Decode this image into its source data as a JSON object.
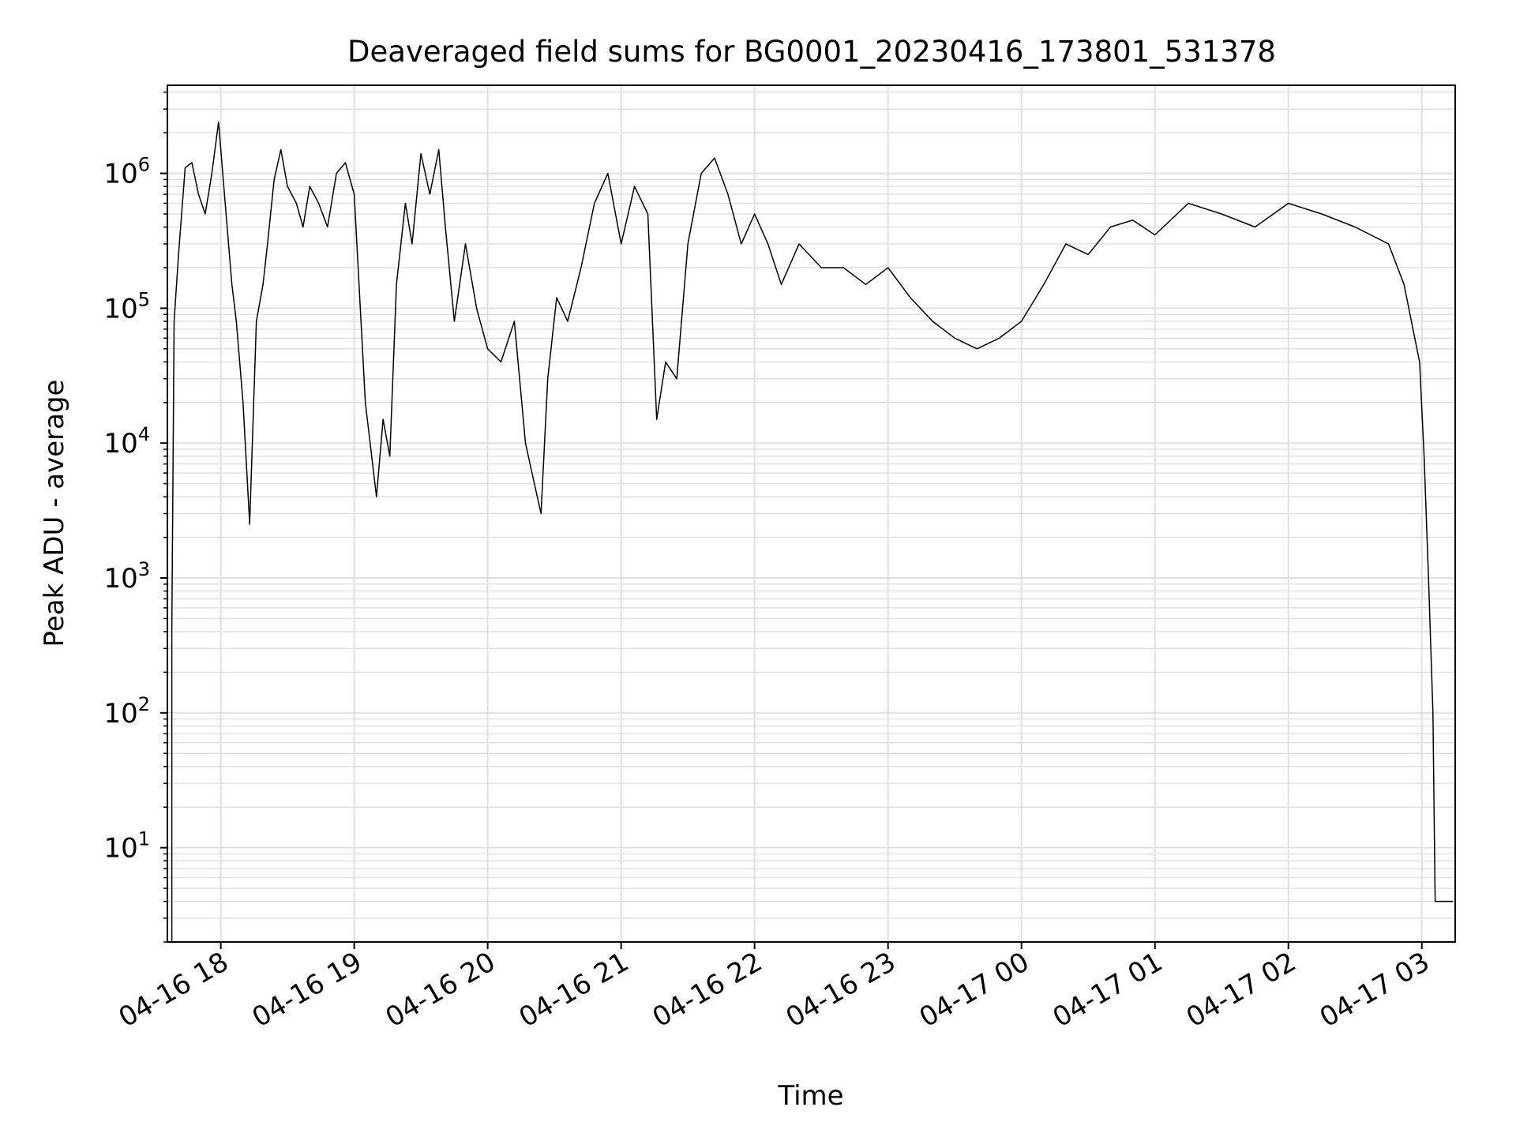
{
  "chart_data": {
    "type": "line",
    "title": "Deaveraged field sums for BG0001_20230416_173801_531378",
    "xlabel": "Time",
    "ylabel": "Peak ADU - average",
    "yscale": "log",
    "ylim": [
      2,
      4500000
    ],
    "xlim": [
      "2023-04-16T17:36",
      "2023-04-17T03:15"
    ],
    "grid": true,
    "line_color": "#000000",
    "grid_color": "#e0e0e0",
    "x_ticks": [
      "2023-04-16T18:00",
      "2023-04-16T19:00",
      "2023-04-16T20:00",
      "2023-04-16T21:00",
      "2023-04-16T22:00",
      "2023-04-16T23:00",
      "2023-04-17T00:00",
      "2023-04-17T01:00",
      "2023-04-17T02:00",
      "2023-04-17T03:00"
    ],
    "x_tick_labels": [
      "04-16 18",
      "04-16 19",
      "04-16 20",
      "04-16 21",
      "04-16 22",
      "04-16 23",
      "04-17 00",
      "04-17 01",
      "04-17 02",
      "04-17 03"
    ],
    "y_ticks": [
      10,
      100,
      1000,
      10000,
      100000,
      1000000
    ],
    "y_tick_exponents": [
      "1",
      "2",
      "3",
      "4",
      "5",
      "6"
    ],
    "y_tick_base": "10",
    "series": [
      {
        "x": [
          "2023-04-16T17:38",
          "2023-04-16T17:38",
          "2023-04-16T17:39",
          "2023-04-16T17:41",
          "2023-04-16T17:44",
          "2023-04-16T17:47",
          "2023-04-16T17:50",
          "2023-04-16T17:53",
          "2023-04-16T17:56",
          "2023-04-16T17:59",
          "2023-04-16T18:02",
          "2023-04-16T18:05",
          "2023-04-16T18:07",
          "2023-04-16T18:10",
          "2023-04-16T18:13",
          "2023-04-16T18:16",
          "2023-04-16T18:19",
          "2023-04-16T18:21",
          "2023-04-16T18:24",
          "2023-04-16T18:27",
          "2023-04-16T18:30",
          "2023-04-16T18:34",
          "2023-04-16T18:37",
          "2023-04-16T18:40",
          "2023-04-16T18:44",
          "2023-04-16T18:48",
          "2023-04-16T18:52",
          "2023-04-16T18:56",
          "2023-04-16T19:00",
          "2023-04-16T19:05",
          "2023-04-16T19:10",
          "2023-04-16T19:13",
          "2023-04-16T19:16",
          "2023-04-16T19:19",
          "2023-04-16T19:23",
          "2023-04-16T19:26",
          "2023-04-16T19:30",
          "2023-04-16T19:34",
          "2023-04-16T19:38",
          "2023-04-16T19:41",
          "2023-04-16T19:45",
          "2023-04-16T19:50",
          "2023-04-16T19:55",
          "2023-04-16T20:00",
          "2023-04-16T20:06",
          "2023-04-16T20:12",
          "2023-04-16T20:17",
          "2023-04-16T20:21",
          "2023-04-16T20:24",
          "2023-04-16T20:27",
          "2023-04-16T20:31",
          "2023-04-16T20:36",
          "2023-04-16T20:42",
          "2023-04-16T20:48",
          "2023-04-16T20:54",
          "2023-04-16T21:00",
          "2023-04-16T21:06",
          "2023-04-16T21:12",
          "2023-04-16T21:16",
          "2023-04-16T21:20",
          "2023-04-16T21:25",
          "2023-04-16T21:30",
          "2023-04-16T21:36",
          "2023-04-16T21:42",
          "2023-04-16T21:48",
          "2023-04-16T21:54",
          "2023-04-16T22:00",
          "2023-04-16T22:06",
          "2023-04-16T22:12",
          "2023-04-16T22:20",
          "2023-04-16T22:30",
          "2023-04-16T22:40",
          "2023-04-16T22:50",
          "2023-04-16T23:00",
          "2023-04-16T23:10",
          "2023-04-16T23:20",
          "2023-04-16T23:30",
          "2023-04-16T23:40",
          "2023-04-16T23:50",
          "2023-04-17T00:00",
          "2023-04-17T00:10",
          "2023-04-17T00:20",
          "2023-04-17T00:30",
          "2023-04-17T00:40",
          "2023-04-17T00:50",
          "2023-04-17T01:00",
          "2023-04-17T01:15",
          "2023-04-17T01:30",
          "2023-04-17T01:45",
          "2023-04-17T02:00",
          "2023-04-17T02:15",
          "2023-04-17T02:30",
          "2023-04-17T02:45",
          "2023-04-17T02:52",
          "2023-04-17T02:56",
          "2023-04-17T02:59",
          "2023-04-17T03:01",
          "2023-04-17T03:03",
          "2023-04-17T03:05",
          "2023-04-17T03:06",
          "2023-04-17T03:07",
          "2023-04-17T03:08",
          "2023-04-17T03:09",
          "2023-04-17T03:14"
        ],
        "y": [
          2,
          400,
          80000,
          250000,
          1100000,
          1200000,
          700000,
          500000,
          1000000,
          2400000,
          600000,
          150000,
          80000,
          20000,
          2500,
          80000,
          150000,
          300000,
          900000,
          1500000,
          800000,
          600000,
          400000,
          800000,
          600000,
          400000,
          1000000,
          1200000,
          700000,
          20000,
          4000,
          15000,
          8000,
          150000,
          600000,
          300000,
          1400000,
          700000,
          1500000,
          400000,
          80000,
          300000,
          100000,
          50000,
          40000,
          80000,
          10000,
          5000,
          3000,
          30000,
          120000,
          80000,
          200000,
          600000,
          1000000,
          300000,
          800000,
          500000,
          15000,
          40000,
          30000,
          300000,
          1000000,
          1300000,
          700000,
          300000,
          500000,
          300000,
          150000,
          300000,
          200000,
          200000,
          150000,
          200000,
          120000,
          80000,
          60000,
          50000,
          60000,
          80000,
          150000,
          300000,
          250000,
          400000,
          450000,
          350000,
          600000,
          500000,
          400000,
          600000,
          500000,
          400000,
          300000,
          150000,
          70000,
          40000,
          8000,
          1000,
          100,
          4,
          4,
          4,
          4,
          4
        ]
      }
    ]
  }
}
